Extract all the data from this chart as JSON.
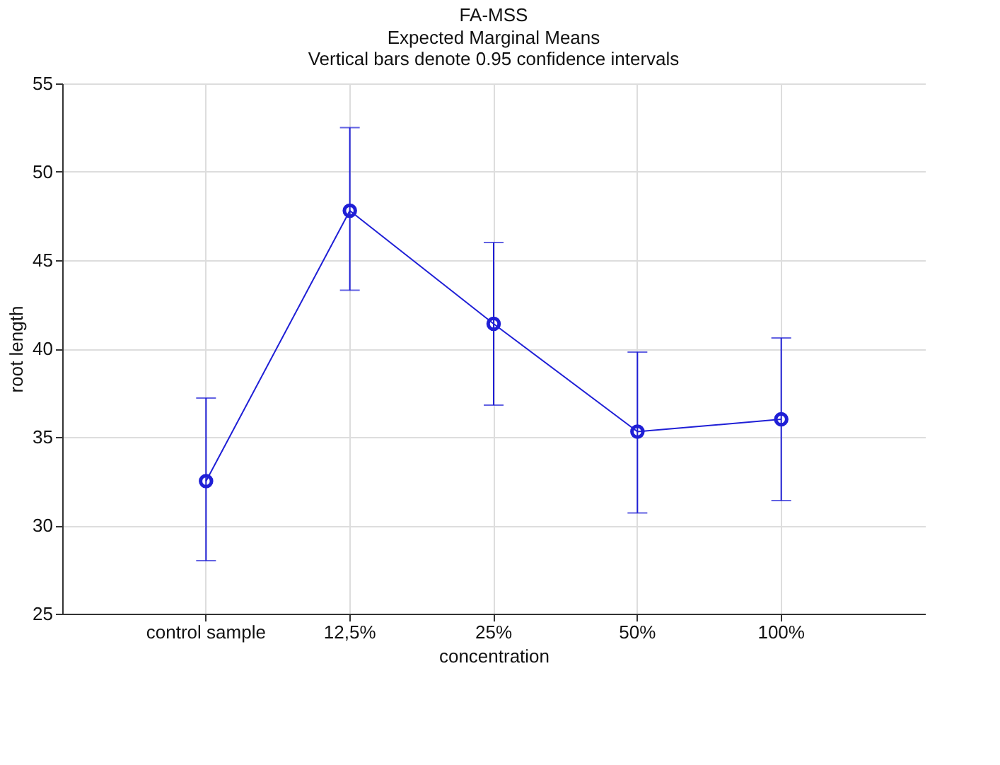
{
  "chart_data": {
    "type": "line",
    "title": "FA-MSS",
    "subtitle": "Expected Marginal Means\nVertical bars denote 0.95 confidence intervals",
    "xlabel": "concentration",
    "ylabel": "root length",
    "categories": [
      "control sample",
      "12,5%",
      "25%",
      "50%",
      "100%"
    ],
    "series": [
      {
        "color": "#1f1fd6",
        "values": [
          32.5,
          47.8,
          41.4,
          35.3,
          36.0
        ],
        "errors": [
          [
            28.0,
            37.2
          ],
          [
            43.3,
            52.5
          ],
          [
            36.8,
            46.0
          ],
          [
            30.7,
            39.8
          ],
          [
            31.4,
            40.6
          ]
        ]
      }
    ],
    "ylim": [
      25,
      55
    ],
    "yticks": [
      25,
      30,
      35,
      40,
      45,
      50,
      55
    ],
    "grid": true,
    "marker": "circle",
    "line_style": "solid"
  }
}
